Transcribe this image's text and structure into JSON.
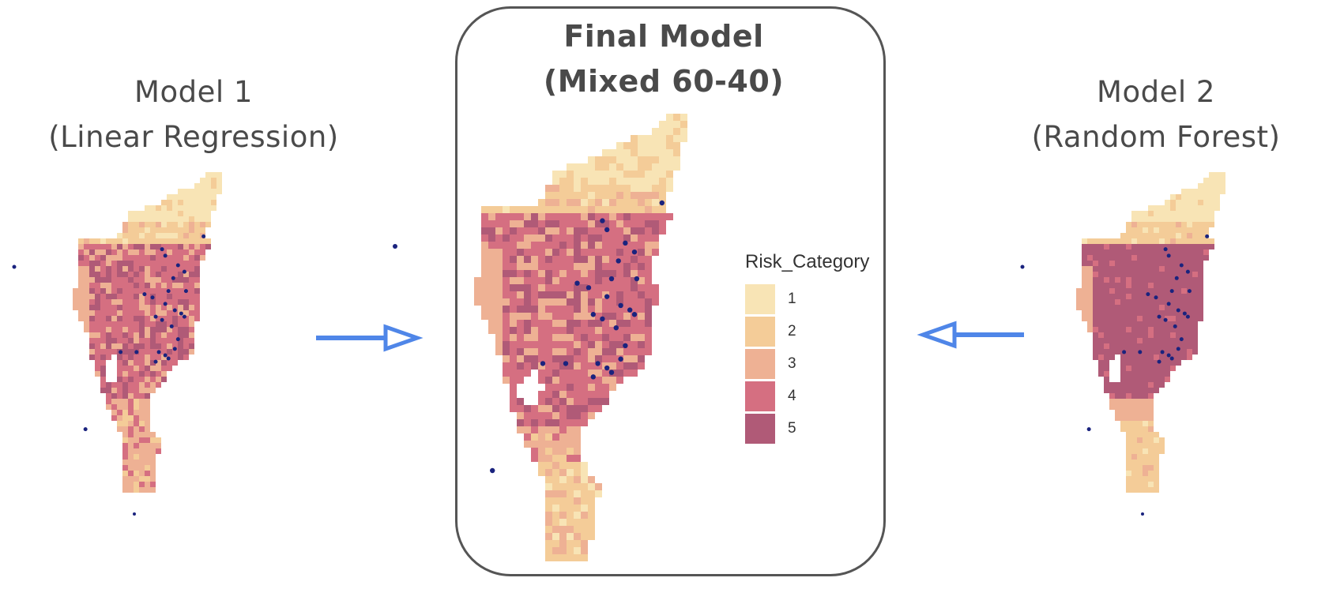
{
  "left_model": {
    "line1": "Model 1",
    "line2": "(Linear Regression)"
  },
  "center_model": {
    "line1": "Final Model",
    "line2": "(Mixed 60-40)"
  },
  "right_model": {
    "line1": "Model 2",
    "line2": "(Random Forest)"
  },
  "legend": {
    "title": "Risk_Category",
    "items": [
      {
        "label": "1",
        "color": "#f8e4b5"
      },
      {
        "label": "2",
        "color": "#f4cc98"
      },
      {
        "label": "3",
        "color": "#eeb194"
      },
      {
        "label": "4",
        "color": "#d56f81"
      },
      {
        "label": "5",
        "color": "#b05a77"
      }
    ]
  },
  "colors": {
    "arrow": "#4f86e8",
    "points": "#1a237e",
    "frame": "#555555"
  }
}
